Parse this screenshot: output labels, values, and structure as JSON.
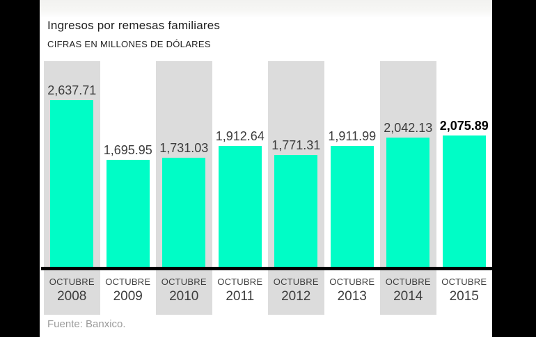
{
  "header": {
    "title": "Ingresos por remesas familiares",
    "subtitle": "CIFRAS EN MILLONES DE DÓLARES"
  },
  "footer": {
    "source": "Fuente: Banxico."
  },
  "colors": {
    "bar": "#00fdc6",
    "stripe": "#dcdcdc",
    "axis": "#000000",
    "panel": "#ffffff",
    "canvas": "#000000",
    "value_label": "#3c3c3c",
    "emphasized_label": "#000000",
    "source_text": "#9b9b9b"
  },
  "chart_data": {
    "type": "bar",
    "title": "Ingresos por remesas familiares",
    "subtitle": "CIFRAS EN MILLONES DE DÓLARES",
    "source": "Fuente: Banxico.",
    "categories": [
      "OCTUBRE 2008",
      "OCTUBRE 2009",
      "OCTUBRE 2010",
      "OCTUBRE 2011",
      "OCTUBRE 2012",
      "OCTUBRE 2013",
      "OCTUBRE 2014",
      "OCTUBRE 2015"
    ],
    "month_label": "OCTUBRE",
    "years": [
      "2008",
      "2009",
      "2010",
      "2011",
      "2012",
      "2013",
      "2014",
      "2015"
    ],
    "values": [
      2637.71,
      1695.95,
      1731.03,
      1912.64,
      1771.31,
      1911.99,
      2042.13,
      2075.89
    ],
    "value_labels": [
      "2,637.71",
      "1,695.95",
      "1,731.03",
      "1,912.64",
      "1,771.31",
      "1,911.99",
      "2,042.13",
      "2,075.89"
    ],
    "emphasized_index": 7,
    "striped_column_indices": [
      0,
      2,
      4,
      6
    ],
    "xlabel": "",
    "ylabel": "Millones de dólares",
    "ylim": [
      0,
      2700
    ],
    "grid": false,
    "legend": false
  }
}
